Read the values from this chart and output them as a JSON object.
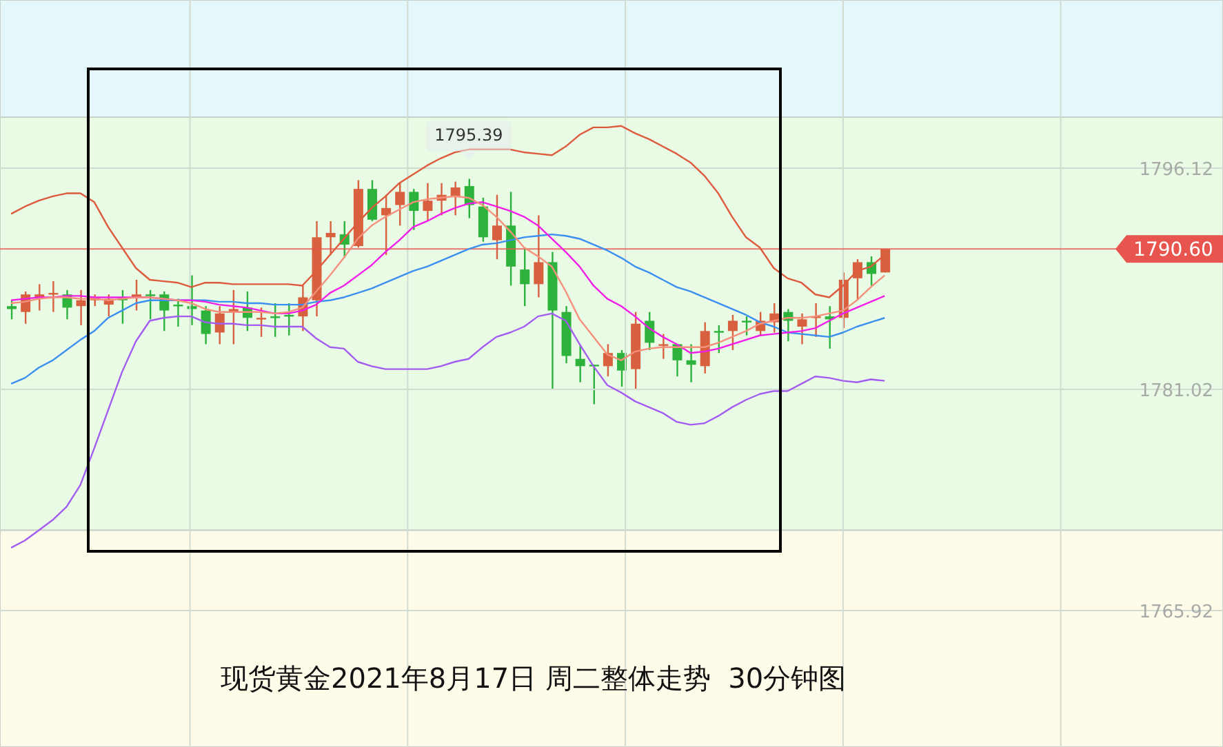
{
  "chart_data": {
    "type": "candlestick",
    "title": "现货黄金2021年8月17日 周二整体走势  30分钟图",
    "categories": [
      null,
      null,
      null,
      null,
      null,
      null,
      null,
      null,
      null,
      null,
      null,
      null,
      null,
      null,
      null,
      null,
      null,
      null,
      null,
      null,
      null,
      null,
      null,
      null,
      null,
      null,
      null,
      null,
      null,
      null,
      null,
      null,
      null,
      null,
      null,
      null,
      null,
      null,
      null,
      null,
      null,
      null,
      null,
      null,
      null,
      null,
      null,
      null,
      null,
      null,
      null,
      null,
      null,
      null,
      null,
      null,
      null,
      null,
      null,
      null,
      null,
      null,
      null,
      null
    ],
    "ohlc": [
      [
        1786.7,
        1787.1,
        1785.8,
        1786.5
      ],
      [
        1786.3,
        1787.7,
        1785.5,
        1787.5
      ],
      [
        1787.3,
        1788.2,
        1786.4,
        1787.5
      ],
      [
        1787.5,
        1788.4,
        1786.3,
        1787.6
      ],
      [
        1787.5,
        1787.8,
        1785.8,
        1786.6
      ],
      [
        1786.7,
        1787.8,
        1785.4,
        1787.1
      ],
      [
        1787.1,
        1787.5,
        1786.7,
        1787.3
      ],
      [
        1786.8,
        1787.5,
        1786.0,
        1787.2
      ],
      [
        1787.3,
        1787.8,
        1785.5,
        1787.1
      ],
      [
        1787.3,
        1788.5,
        1786.4,
        1787.5
      ],
      [
        1787.5,
        1787.8,
        1785.8,
        1787.4
      ],
      [
        1787.5,
        1787.7,
        1785.0,
        1786.4
      ],
      [
        1786.8,
        1787.2,
        1785.3,
        1786.7
      ],
      [
        1786.7,
        1788.8,
        1785.4,
        1786.5
      ],
      [
        1786.4,
        1786.7,
        1784.1,
        1784.8
      ],
      [
        1784.9,
        1786.7,
        1784.1,
        1786.2
      ],
      [
        1786.3,
        1787.8,
        1784.1,
        1786.5
      ],
      [
        1786.6,
        1787.7,
        1785.0,
        1785.9
      ],
      [
        1785.8,
        1786.6,
        1784.6,
        1785.9
      ],
      [
        1786.0,
        1786.9,
        1784.6,
        1785.9
      ],
      [
        1786.1,
        1786.9,
        1784.7,
        1786.0
      ],
      [
        1786.0,
        1788.1,
        1785.0,
        1787.3
      ],
      [
        1787.1,
        1792.5,
        1786.0,
        1791.4
      ],
      [
        1791.4,
        1792.5,
        1790.2,
        1791.7
      ],
      [
        1791.6,
        1792.5,
        1790.0,
        1790.9
      ],
      [
        1790.8,
        1795.3,
        1790.7,
        1794.7
      ],
      [
        1794.7,
        1795.3,
        1792.5,
        1792.6
      ],
      [
        1792.9,
        1794.3,
        1790.2,
        1793.4
      ],
      [
        1793.6,
        1795.1,
        1792.2,
        1794.5
      ],
      [
        1794.5,
        1794.7,
        1791.9,
        1793.2
      ],
      [
        1793.2,
        1795.1,
        1792.5,
        1793.9
      ],
      [
        1793.9,
        1795.1,
        1792.9,
        1794.3
      ],
      [
        1794.2,
        1795.2,
        1792.9,
        1794.8
      ],
      [
        1794.9,
        1795.39,
        1792.7,
        1793.6
      ],
      [
        1793.5,
        1794.1,
        1791.1,
        1791.4
      ],
      [
        1791.2,
        1794.3,
        1789.9,
        1792.2
      ],
      [
        1792.2,
        1794.5,
        1788.1,
        1789.4
      ],
      [
        1789.2,
        1790.7,
        1786.7,
        1788.2
      ],
      [
        1788.2,
        1792.9,
        1787.3,
        1789.7
      ],
      [
        1789.7,
        1790.4,
        1781.0,
        1786.4
      ],
      [
        1786.3,
        1786.7,
        1782.8,
        1783.3
      ],
      [
        1783.1,
        1784.0,
        1781.5,
        1782.6
      ],
      [
        1782.7,
        1782.7,
        1780.0,
        1782.6
      ],
      [
        1782.6,
        1784.1,
        1781.9,
        1783.5
      ],
      [
        1783.5,
        1783.7,
        1781.2,
        1782.3
      ],
      [
        1782.4,
        1786.3,
        1781.0,
        1785.5
      ],
      [
        1785.7,
        1786.3,
        1783.7,
        1784.2
      ],
      [
        1784.0,
        1784.8,
        1783.1,
        1784.1
      ],
      [
        1784.1,
        1784.1,
        1781.9,
        1783.0
      ],
      [
        1783.0,
        1784.1,
        1781.5,
        1782.7
      ],
      [
        1782.6,
        1785.6,
        1782.1,
        1785.0
      ],
      [
        1785.0,
        1785.4,
        1783.5,
        1784.9
      ],
      [
        1785.0,
        1786.1,
        1783.7,
        1785.7
      ],
      [
        1785.7,
        1786.0,
        1784.7,
        1785.6
      ],
      [
        1785.0,
        1786.3,
        1784.7,
        1785.7
      ],
      [
        1785.6,
        1786.9,
        1784.9,
        1786.2
      ],
      [
        1786.3,
        1786.5,
        1784.3,
        1785.7
      ],
      [
        1785.3,
        1786.2,
        1784.1,
        1785.8
      ],
      [
        1785.9,
        1786.9,
        1784.6,
        1786.0
      ],
      [
        1786.0,
        1786.7,
        1783.8,
        1785.8
      ],
      [
        1785.9,
        1789.0,
        1785.2,
        1788.5
      ],
      [
        1788.6,
        1789.9,
        1787.1,
        1789.7
      ],
      [
        1789.7,
        1790.1,
        1788.1,
        1788.9
      ],
      [
        1789.0,
        1790.6,
        1789.0,
        1790.6
      ]
    ],
    "colors": [
      "#2db33c",
      "#d9603e",
      "#d9603e",
      "#d9603e",
      "#2db33c",
      "#d9603e",
      "#d9603e",
      "#d9603e",
      "#2db33c",
      "#d9603e",
      "#2db33c",
      "#2db33c",
      "#2db33c",
      "#2db33c",
      "#2db33c",
      "#d9603e",
      "#d9603e",
      "#2db33c",
      "#d9603e",
      "#2db33c",
      "#2db33c",
      "#d9603e",
      "#d9603e",
      "#d9603e",
      "#2db33c",
      "#d9603e",
      "#2db33c",
      "#d9603e",
      "#d9603e",
      "#2db33c",
      "#d9603e",
      "#d9603e",
      "#d9603e",
      "#2db33c",
      "#2db33c",
      "#d9603e",
      "#2db33c",
      "#2db33c",
      "#d9603e",
      "#2db33c",
      "#2db33c",
      "#2db33c",
      "#2db33c",
      "#d9603e",
      "#2db33c",
      "#d9603e",
      "#2db33c",
      "#d9603e",
      "#2db33c",
      "#2db33c",
      "#d9603e",
      "#2db33c",
      "#d9603e",
      "#2db33c",
      "#d9603e",
      "#d9603e",
      "#2db33c",
      "#d9603e",
      "#d9603e",
      "#2db33c",
      "#d9603e",
      "#d9603e",
      "#2db33c",
      "#d9603e"
    ],
    "series": [
      {
        "type": "line",
        "color": "#dd5a3c",
        "values": [
          1793.0,
          1793.5,
          1793.9,
          1794.2,
          1794.4,
          1794.4,
          1793.8,
          1792.1,
          1790.7,
          1789.3,
          1788.5,
          1788.4,
          1788.3,
          1788.0,
          1788.3,
          1788.3,
          1788.2,
          1788.2,
          1788.2,
          1788.2,
          1788.2,
          1788.1,
          1789.1,
          1790.2,
          1791.3,
          1792.4,
          1793.4,
          1794.2,
          1795.1,
          1795.7,
          1796.3,
          1796.8,
          1797.2,
          1797.4,
          1797.4,
          1797.4,
          1797.4,
          1797.2,
          1797.1,
          1797.0,
          1797.6,
          1798.4,
          1798.9,
          1798.9,
          1799.0,
          1798.5,
          1798.1,
          1797.6,
          1797.1,
          1796.5,
          1795.6,
          1794.4,
          1792.8,
          1791.4,
          1790.7,
          1789.3,
          1788.6,
          1788.3,
          1787.5,
          1787.3,
          1788.1,
          1789.1,
          1789.4,
          1790.2
        ]
      },
      {
        "type": "line",
        "color": "#3b8ff0",
        "values": [
          1781.4,
          1781.8,
          1782.5,
          1783.0,
          1783.7,
          1784.4,
          1785.0,
          1785.9,
          1786.4,
          1786.9,
          1787.1,
          1787.1,
          1787.1,
          1787.1,
          1787.1,
          1787.0,
          1787.0,
          1786.9,
          1786.9,
          1786.8,
          1786.8,
          1786.8,
          1787.0,
          1787.1,
          1787.3,
          1787.6,
          1787.9,
          1788.3,
          1788.7,
          1789.1,
          1789.4,
          1789.8,
          1790.2,
          1790.6,
          1790.9,
          1791.0,
          1791.2,
          1791.4,
          1791.5,
          1791.6,
          1791.5,
          1791.3,
          1790.9,
          1790.5,
          1790.0,
          1789.4,
          1789.0,
          1788.5,
          1788.0,
          1787.7,
          1787.3,
          1786.9,
          1786.5,
          1786.1,
          1785.6,
          1785.3,
          1784.9,
          1784.8,
          1784.7,
          1784.6,
          1784.9,
          1785.3,
          1785.6,
          1785.9
        ]
      },
      {
        "type": "line",
        "color": "#a35cf0",
        "values": [
          1770.2,
          1770.7,
          1771.4,
          1772.1,
          1773.0,
          1774.5,
          1777.0,
          1779.6,
          1782.2,
          1784.3,
          1785.7,
          1785.9,
          1786.0,
          1786.0,
          1785.6,
          1785.5,
          1785.5,
          1785.4,
          1785.4,
          1785.3,
          1785.3,
          1785.3,
          1784.5,
          1783.9,
          1783.8,
          1782.9,
          1782.6,
          1782.4,
          1782.4,
          1782.4,
          1782.4,
          1782.6,
          1782.9,
          1783.1,
          1783.9,
          1784.6,
          1784.9,
          1785.3,
          1786.0,
          1786.2,
          1785.7,
          1784.1,
          1782.6,
          1781.3,
          1780.8,
          1780.2,
          1779.8,
          1779.4,
          1778.8,
          1778.6,
          1778.7,
          1779.2,
          1779.8,
          1780.3,
          1780.7,
          1780.9,
          1780.9,
          1781.4,
          1781.9,
          1781.8,
          1781.6,
          1781.5,
          1781.7,
          1781.6
        ]
      },
      {
        "type": "line",
        "color": "#f01ee8",
        "values": [
          1787.1,
          1787.2,
          1787.3,
          1787.3,
          1787.4,
          1787.4,
          1787.3,
          1787.3,
          1787.3,
          1787.3,
          1787.3,
          1787.2,
          1787.1,
          1787.1,
          1787.0,
          1786.8,
          1786.7,
          1786.6,
          1786.4,
          1786.2,
          1786.2,
          1786.4,
          1786.8,
          1787.6,
          1788.1,
          1788.8,
          1789.5,
          1790.4,
          1791.2,
          1792.1,
          1792.5,
          1793.0,
          1793.4,
          1793.7,
          1793.8,
          1793.5,
          1793.2,
          1792.8,
          1792.2,
          1791.3,
          1790.4,
          1789.4,
          1788.1,
          1787.2,
          1786.7,
          1786.0,
          1785.2,
          1784.6,
          1784.1,
          1783.5,
          1783.6,
          1783.8,
          1784.1,
          1784.4,
          1784.7,
          1784.8,
          1784.9,
          1785.0,
          1785.2,
          1785.7,
          1786.2,
          1786.6,
          1787.0,
          1787.4
        ]
      },
      {
        "type": "line",
        "color": "#f5907c",
        "values": [
          1786.9,
          1787.0,
          1787.2,
          1787.3,
          1787.3,
          1787.2,
          1787.2,
          1787.1,
          1787.2,
          1787.3,
          1787.3,
          1787.2,
          1787.1,
          1786.9,
          1786.5,
          1786.3,
          1786.3,
          1786.3,
          1786.3,
          1786.2,
          1786.3,
          1786.6,
          1787.7,
          1788.8,
          1790.0,
          1791.3,
          1792.2,
          1792.8,
          1793.3,
          1793.8,
          1794.0,
          1794.1,
          1794.2,
          1794.1,
          1793.6,
          1792.8,
          1791.8,
          1790.7,
          1790.1,
          1789.4,
          1787.7,
          1785.8,
          1784.6,
          1783.4,
          1783.0,
          1783.6,
          1783.8,
          1783.9,
          1783.9,
          1783.9,
          1783.9,
          1784.2,
          1784.6,
          1785.0,
          1785.5,
          1785.7,
          1785.9,
          1785.9,
          1786.0,
          1786.2,
          1786.4,
          1787.1,
          1788.0,
          1788.8
        ]
      }
    ],
    "ylim": [
      1756.6,
      1807.6
    ],
    "yticks": [
      1796.12,
      1781.02,
      1765.92
    ],
    "tick_labels": "y",
    "grid": true,
    "marker": "none",
    "line_style": "solid",
    "ref_lines": [
      {
        "axis": "y",
        "value": 1790.6,
        "label": "1790.60",
        "color": "#e8554e"
      }
    ],
    "bands": [
      {
        "axis": "y",
        "from": 1799.6,
        "to": 1807.6,
        "color": "#e4f7fb"
      },
      {
        "axis": "y",
        "from": 1771.4,
        "to": 1799.6,
        "color": "#e9fbe5"
      },
      {
        "axis": "y",
        "from": 1756.6,
        "to": 1771.4,
        "color": "#fffbe9"
      }
    ],
    "annotations": [
      {
        "text": "1795.39",
        "y": 1795.39
      }
    ]
  }
}
